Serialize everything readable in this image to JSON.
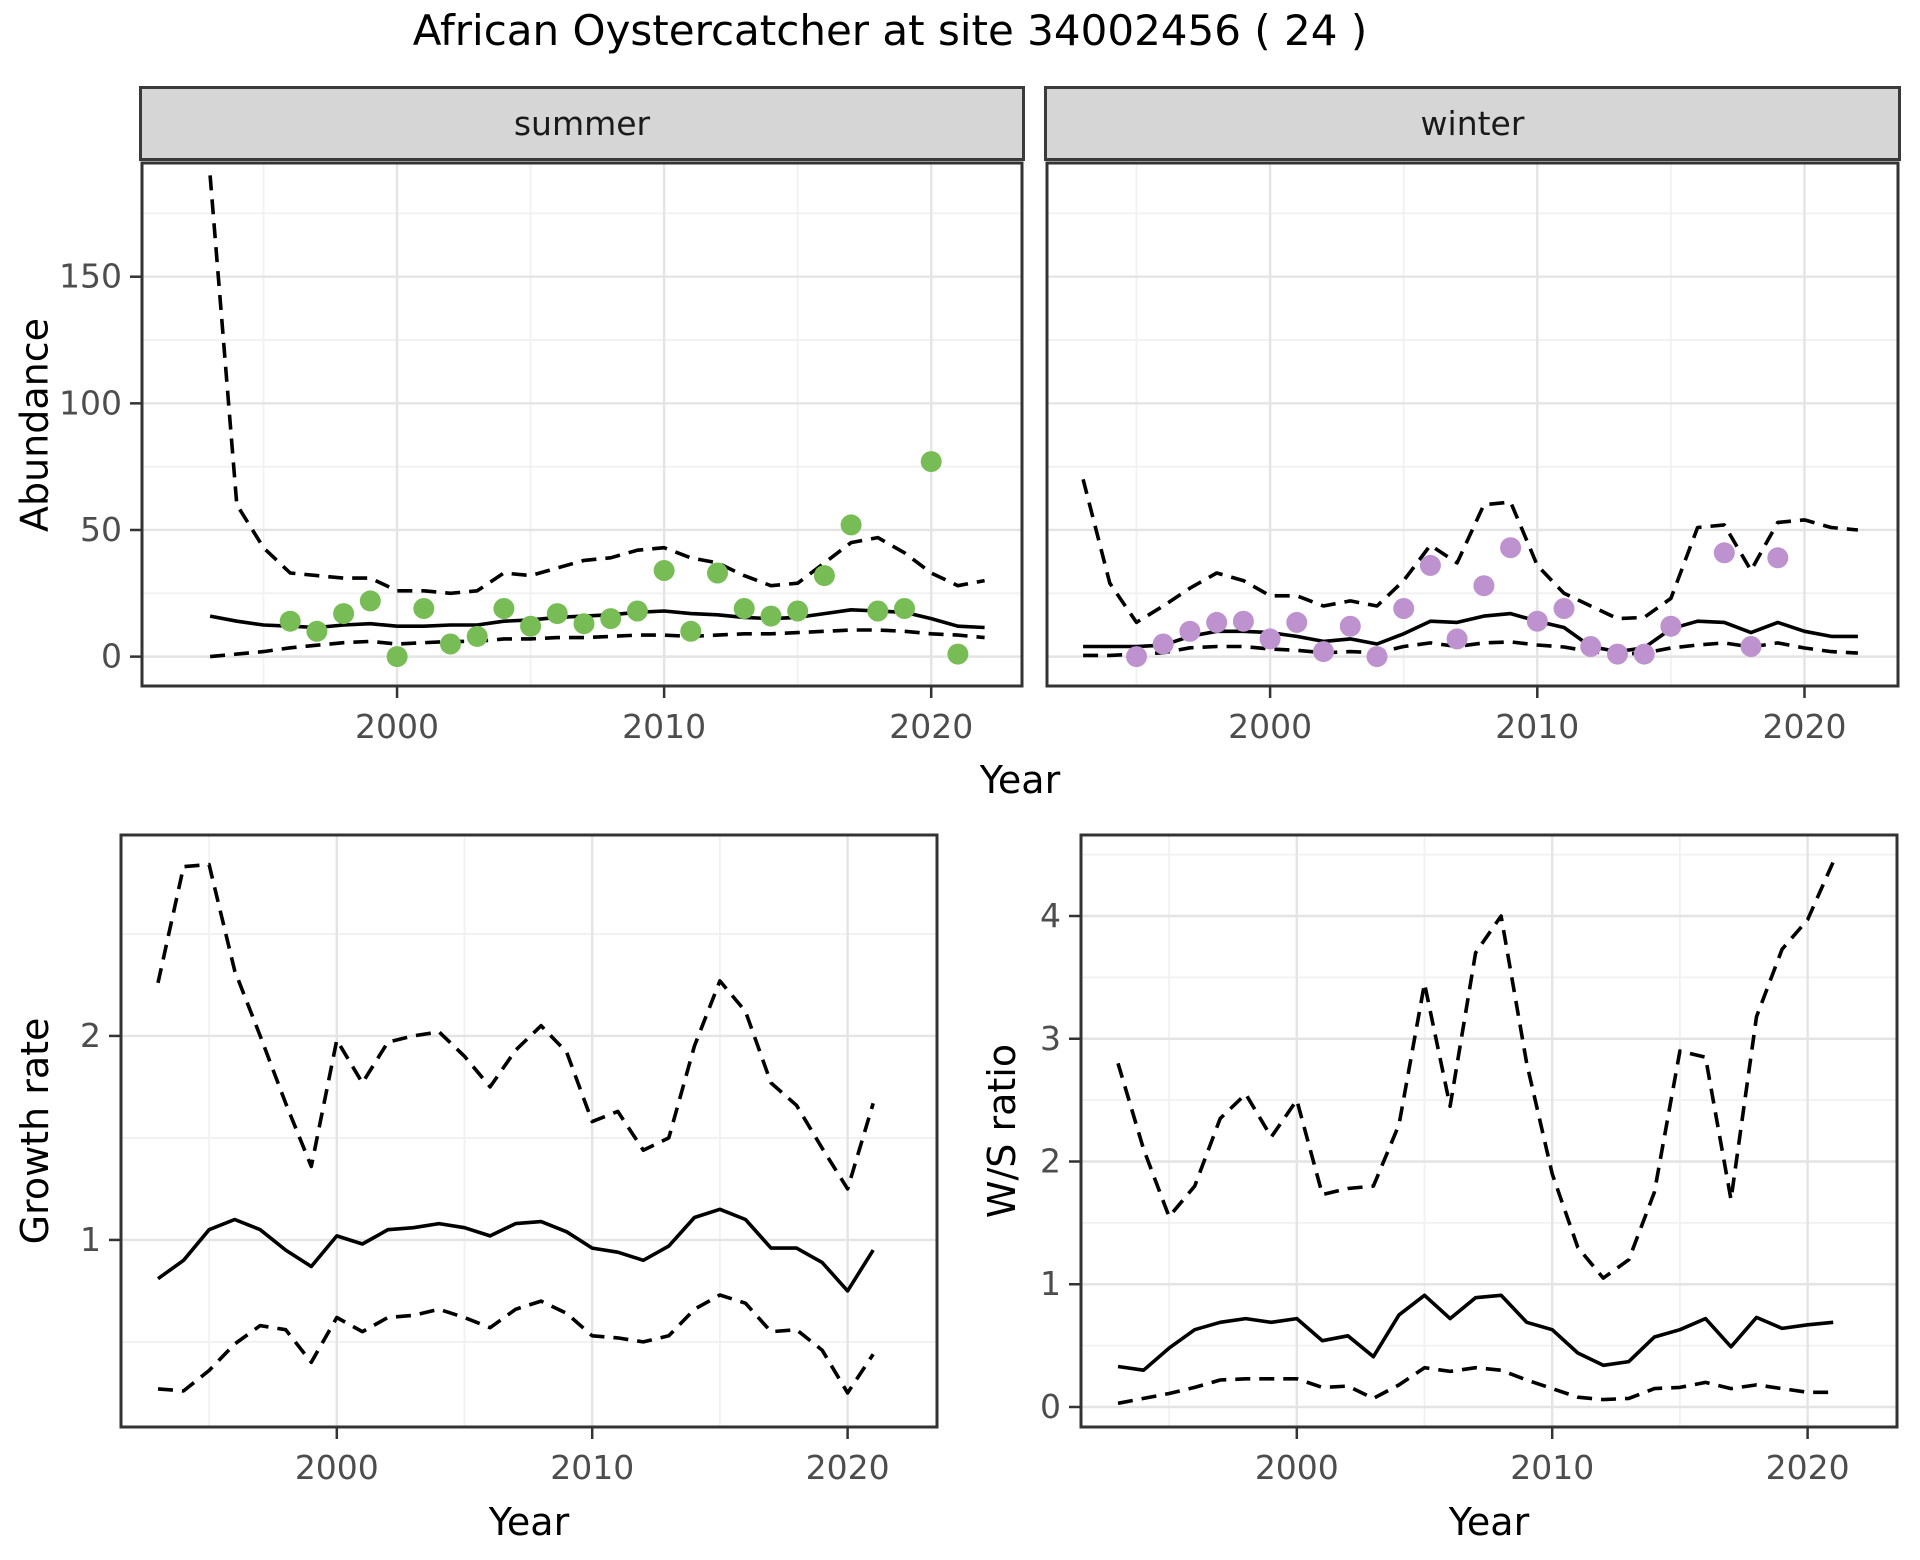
{
  "title": "African Oystercatcher at site 34002456 ( 24 )",
  "facets": {
    "summer": "summer",
    "winter": "winter"
  },
  "axis_labels": {
    "abundance": "Abundance",
    "year_top": "Year",
    "year_growth": "Year",
    "year_ws": "Year",
    "growth_rate": "Growth rate",
    "ws_ratio": "W/S ratio"
  },
  "colors": {
    "summer_points": "#77bc55",
    "winter_points": "#bd92cf",
    "line": "#000000",
    "strip_bg": "#d6d6d6",
    "grid_major": "#e4e4e4",
    "grid_minor": "#f1f1f1",
    "panel_border": "#333333",
    "tick_mark": "#333333",
    "tick_text": "#4d4d4d",
    "page_bg": "#ffffff"
  },
  "chart_data": [
    {
      "id": "abundance-summer",
      "type": "line",
      "facet_label": "summer",
      "xlabel": "Year",
      "ylabel": "Abundance",
      "xlim": [
        1990.45,
        2023.4
      ],
      "ylim": [
        -11.6,
        194.9
      ],
      "xticks": [
        2000,
        2010,
        2020
      ],
      "xticks_minor": [
        1995,
        2005,
        2015
      ],
      "yticks": [
        0,
        50,
        100,
        150
      ],
      "yticks_minor": [
        25,
        75,
        125,
        175
      ],
      "show_y_labels": true,
      "years": [
        1993,
        1994,
        1995,
        1996,
        1997,
        1998,
        1999,
        2000,
        2001,
        2002,
        2003,
        2004,
        2005,
        2006,
        2007,
        2008,
        2009,
        2010,
        2011,
        2012,
        2013,
        2014,
        2015,
        2016,
        2017,
        2018,
        2019,
        2020,
        2021,
        2022
      ],
      "series": [
        {
          "name": "upper_ci",
          "style": "dashed",
          "values": [
            190,
            60,
            43,
            33,
            32,
            31,
            31,
            26,
            26,
            25,
            26,
            33,
            32,
            35,
            38,
            39,
            42,
            43,
            39,
            37,
            32,
            28,
            29,
            37,
            45,
            47,
            41,
            33,
            28,
            30
          ]
        },
        {
          "name": "median",
          "style": "solid",
          "values": [
            16,
            14,
            12.5,
            12,
            11.5,
            12.5,
            13,
            12,
            12,
            12.5,
            12.5,
            14,
            14.5,
            15.5,
            16,
            16.5,
            17.5,
            18,
            17,
            16.5,
            15.5,
            15,
            15.5,
            17,
            18.5,
            18,
            17.5,
            15,
            12,
            11.5
          ]
        },
        {
          "name": "lower_ci",
          "style": "dashed",
          "values": [
            0,
            1,
            2,
            3.5,
            4.5,
            5.5,
            6,
            5,
            5.5,
            6,
            6,
            7,
            7,
            7.5,
            7.5,
            8,
            8.5,
            8.5,
            8,
            8.5,
            9,
            9,
            9.5,
            10,
            10.5,
            10.5,
            10,
            9,
            8.5,
            7.5
          ]
        }
      ],
      "points": {
        "name": "observed_counts_summer",
        "color": "#77bc55",
        "years": [
          1996,
          1997,
          1998,
          1999,
          2000,
          2001,
          2002,
          2003,
          2004,
          2005,
          2006,
          2007,
          2008,
          2009,
          2010,
          2011,
          2012,
          2013,
          2014,
          2015,
          2016,
          2017,
          2018,
          2019,
          2020,
          2021
        ],
        "values": [
          14,
          10,
          17,
          22,
          0,
          19,
          5,
          8,
          19,
          12,
          17,
          13,
          15,
          18,
          34,
          10,
          33,
          19,
          16,
          18,
          32,
          52,
          18,
          19,
          77,
          1
        ]
      }
    },
    {
      "id": "abundance-winter",
      "type": "line",
      "facet_label": "winter",
      "xlabel": "Year",
      "ylabel": "Abundance",
      "xlim": [
        1991.65,
        2023.5
      ],
      "ylim": [
        -11.6,
        194.9
      ],
      "xticks": [
        2000,
        2010,
        2020
      ],
      "xticks_minor": [
        1995,
        2005,
        2015
      ],
      "yticks": [
        0,
        50,
        100,
        150
      ],
      "yticks_minor": [
        25,
        75,
        125,
        175
      ],
      "show_y_labels": false,
      "years": [
        1993,
        1994,
        1995,
        1996,
        1997,
        1998,
        1999,
        2000,
        2001,
        2002,
        2003,
        2004,
        2005,
        2006,
        2007,
        2008,
        2009,
        2010,
        2011,
        2012,
        2013,
        2014,
        2015,
        2016,
        2017,
        2018,
        2019,
        2020,
        2021,
        2022
      ],
      "series": [
        {
          "name": "upper_ci",
          "style": "dashed",
          "values": [
            70,
            29,
            13.5,
            20,
            27,
            33,
            30,
            24,
            24,
            20,
            22,
            20,
            30,
            44,
            37,
            60,
            61,
            36,
            25,
            20,
            15,
            15.5,
            23,
            51,
            52,
            34,
            53,
            54,
            51,
            50
          ]
        },
        {
          "name": "median",
          "style": "solid",
          "values": [
            4,
            4,
            4,
            4.5,
            8,
            10,
            10,
            9.5,
            8,
            6,
            7,
            5,
            9,
            14,
            13.5,
            16,
            17,
            14,
            11.5,
            4,
            2,
            3.5,
            11,
            14,
            13.5,
            9.5,
            13.5,
            10,
            8,
            8
          ]
        },
        {
          "name": "lower_ci",
          "style": "dashed",
          "values": [
            0.5,
            0.5,
            1,
            1.5,
            3.5,
            4,
            4,
            3,
            2.5,
            1.5,
            2,
            1.5,
            4,
            5.4,
            4,
            5.4,
            5.8,
            4.6,
            3.8,
            2,
            1,
            1.4,
            3.4,
            4.6,
            5.4,
            3.8,
            5.4,
            3.4,
            2,
            1.4
          ]
        }
      ],
      "points": {
        "name": "observed_counts_winter",
        "color": "#bd92cf",
        "years": [
          1995,
          1996,
          1997,
          1998,
          1999,
          2000,
          2001,
          2002,
          2003,
          2004,
          2005,
          2006,
          2007,
          2008,
          2009,
          2010,
          2011,
          2012,
          2013,
          2014,
          2015,
          2017,
          2018,
          2019
        ],
        "values": [
          0,
          5,
          10,
          13.5,
          14,
          7,
          13.5,
          2,
          12,
          0,
          19,
          36,
          7,
          28,
          43,
          14,
          19,
          4,
          1,
          1,
          12,
          41,
          4,
          39
        ]
      }
    },
    {
      "id": "growth-rate",
      "type": "line",
      "facet_label": "",
      "xlabel": "Year",
      "ylabel": "Growth rate",
      "xlim": [
        1991.55,
        2023.5
      ],
      "ylim": [
        0.083,
        2.985
      ],
      "xticks": [
        2000,
        2010,
        2020
      ],
      "xticks_minor": [
        1995,
        2005,
        2015
      ],
      "yticks": [
        1,
        2
      ],
      "yticks_minor": [
        0.5,
        1.5,
        2.5
      ],
      "show_y_labels": true,
      "years": [
        1993,
        1994,
        1995,
        1996,
        1997,
        1998,
        1999,
        2000,
        2001,
        2002,
        2003,
        2004,
        2005,
        2006,
        2007,
        2008,
        2009,
        2010,
        2011,
        2012,
        2013,
        2014,
        2015,
        2016,
        2017,
        2018,
        2019,
        2020,
        2021
      ],
      "series": [
        {
          "name": "upper_ci",
          "style": "dashed",
          "values": [
            2.26,
            2.83,
            2.84,
            2.32,
            2.0,
            1.67,
            1.36,
            1.98,
            1.77,
            1.97,
            2.0,
            2.02,
            1.9,
            1.75,
            1.93,
            2.05,
            1.92,
            1.58,
            1.63,
            1.44,
            1.5,
            1.95,
            2.27,
            2.12,
            1.77,
            1.66,
            1.45,
            1.25,
            1.67
          ]
        },
        {
          "name": "median",
          "style": "solid",
          "values": [
            0.81,
            0.9,
            1.05,
            1.1,
            1.05,
            0.95,
            0.87,
            1.02,
            0.98,
            1.05,
            1.06,
            1.08,
            1.06,
            1.02,
            1.08,
            1.09,
            1.04,
            0.96,
            0.94,
            0.9,
            0.97,
            1.11,
            1.15,
            1.1,
            0.96,
            0.96,
            0.89,
            0.75,
            0.95
          ]
        },
        {
          "name": "lower_ci",
          "style": "dashed",
          "values": [
            0.27,
            0.26,
            0.36,
            0.49,
            0.58,
            0.56,
            0.4,
            0.62,
            0.55,
            0.62,
            0.63,
            0.66,
            0.62,
            0.57,
            0.66,
            0.7,
            0.64,
            0.53,
            0.52,
            0.5,
            0.53,
            0.66,
            0.73,
            0.69,
            0.55,
            0.56,
            0.46,
            0.25,
            0.44
          ]
        }
      ],
      "points": null
    },
    {
      "id": "ws-ratio",
      "type": "line",
      "facet_label": "",
      "xlabel": "Year",
      "ylabel": "W/S ratio",
      "xlim": [
        1991.55,
        2023.5
      ],
      "ylim": [
        -0.163,
        4.66
      ],
      "xticks": [
        2000,
        2010,
        2020
      ],
      "xticks_minor": [
        1995,
        2005,
        2015
      ],
      "yticks": [
        0,
        1,
        2,
        3,
        4
      ],
      "yticks_minor": [
        0.5,
        1.5,
        2.5,
        3.5,
        4.5
      ],
      "show_y_labels": true,
      "years": [
        1993,
        1994,
        1995,
        1996,
        1997,
        1998,
        1999,
        2000,
        2001,
        2002,
        2003,
        2004,
        2005,
        2006,
        2007,
        2008,
        2009,
        2010,
        2011,
        2012,
        2013,
        2014,
        2015,
        2016,
        2017,
        2018,
        2019,
        2020,
        2021
      ],
      "series": [
        {
          "name": "upper_ci",
          "style": "dashed",
          "values": [
            2.8,
            2.1,
            1.55,
            1.8,
            2.35,
            2.55,
            2.2,
            2.5,
            1.73,
            1.78,
            1.8,
            2.3,
            3.45,
            2.45,
            3.7,
            4.0,
            2.8,
            1.9,
            1.3,
            1.05,
            1.2,
            1.75,
            2.9,
            2.85,
            1.69,
            3.18,
            3.73,
            3.97,
            4.44
          ]
        },
        {
          "name": "median",
          "style": "solid",
          "values": [
            0.33,
            0.3,
            0.48,
            0.63,
            0.69,
            0.72,
            0.69,
            0.72,
            0.54,
            0.58,
            0.41,
            0.75,
            0.91,
            0.72,
            0.89,
            0.91,
            0.69,
            0.63,
            0.44,
            0.34,
            0.37,
            0.57,
            0.63,
            0.72,
            0.49,
            0.73,
            0.64,
            0.67,
            0.69
          ]
        },
        {
          "name": "lower_ci",
          "style": "dashed",
          "values": [
            0.03,
            0.07,
            0.11,
            0.16,
            0.22,
            0.23,
            0.23,
            0.23,
            0.16,
            0.17,
            0.07,
            0.18,
            0.32,
            0.29,
            0.32,
            0.3,
            0.22,
            0.15,
            0.08,
            0.06,
            0.07,
            0.15,
            0.16,
            0.2,
            0.15,
            0.18,
            0.15,
            0.12,
            0.12
          ]
        }
      ],
      "points": null
    }
  ]
}
